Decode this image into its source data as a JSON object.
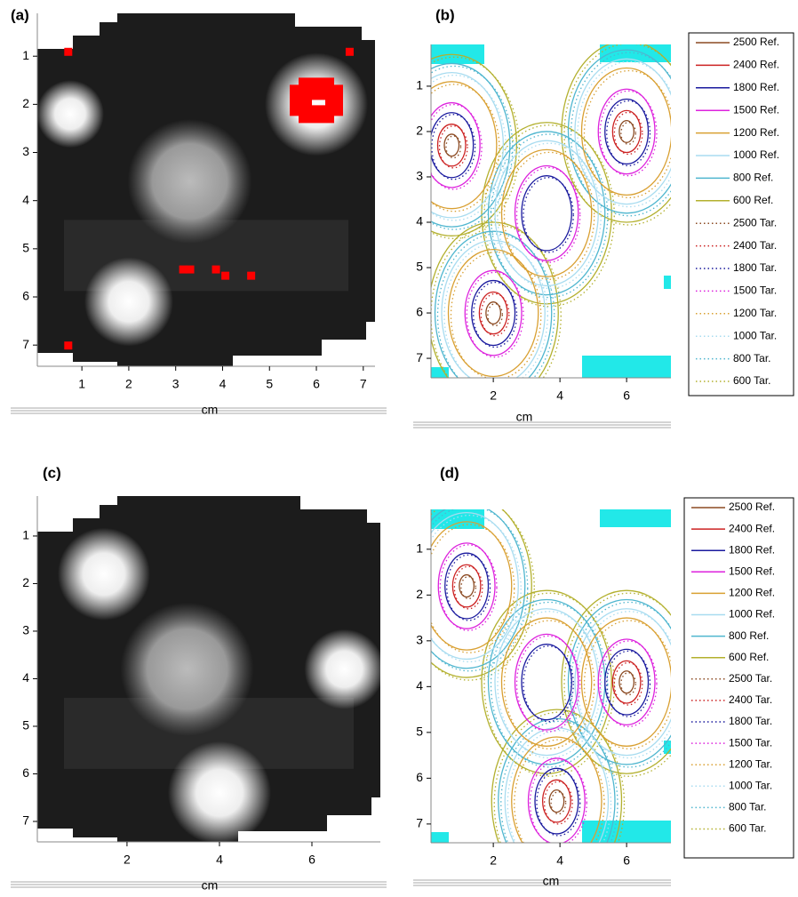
{
  "chart_data": [
    {
      "type": "heatmap",
      "title": "(a)",
      "xlabel": "cm",
      "y_inverted": true,
      "xlim": [
        0.05,
        7.25
      ],
      "ylim": [
        0.11,
        7.44
      ],
      "xticks": [
        1,
        2,
        3,
        4,
        5,
        6,
        7
      ],
      "yticks": [
        1,
        2,
        3,
        4,
        5,
        6,
        7
      ]
    },
    {
      "type": "contour",
      "title": "(b)",
      "xlabel": "cm",
      "y_inverted": true,
      "xlim": [
        0.13,
        7.33
      ],
      "ylim": [
        0.08,
        7.43
      ],
      "xticks": [
        2,
        4,
        6
      ],
      "yticks": [
        1,
        2,
        3,
        4,
        5,
        6,
        7
      ],
      "legend": [
        {
          "name": "2500 Ref.",
          "color": "#8b4a22",
          "style": "solid"
        },
        {
          "name": "2400 Ref.",
          "color": "#cc2222",
          "style": "solid"
        },
        {
          "name": "1800 Ref.",
          "color": "#1a1a9e",
          "style": "solid"
        },
        {
          "name": "1500 Ref.",
          "color": "#dd22dd",
          "style": "solid"
        },
        {
          "name": "1200 Ref.",
          "color": "#d9a032",
          "style": "solid"
        },
        {
          "name": "1000 Ref.",
          "color": "#a8dcf0",
          "style": "solid"
        },
        {
          "name": "800 Ref.",
          "color": "#4fb6cf",
          "style": "solid"
        },
        {
          "name": "600 Ref.",
          "color": "#b3b02e",
          "style": "solid"
        },
        {
          "name": "2500 Tar.",
          "color": "#8b4a22",
          "style": "dotted"
        },
        {
          "name": "2400 Tar.",
          "color": "#cc2222",
          "style": "dotted"
        },
        {
          "name": "1800 Tar.",
          "color": "#1a1a9e",
          "style": "dotted"
        },
        {
          "name": "1500 Tar.",
          "color": "#dd22dd",
          "style": "dotted"
        },
        {
          "name": "1200 Tar.",
          "color": "#d9a032",
          "style": "dotted"
        },
        {
          "name": "1000 Tar.",
          "color": "#a8dcf0",
          "style": "dotted"
        },
        {
          "name": "800 Tar.",
          "color": "#4fb6cf",
          "style": "dotted"
        },
        {
          "name": "600 Tar.",
          "color": "#b3b02e",
          "style": "dotted"
        }
      ]
    },
    {
      "type": "heatmap",
      "title": "(c)",
      "xlabel": "cm",
      "y_inverted": true,
      "xlim": [
        0.06,
        7.48
      ],
      "ylim": [
        0.16,
        7.43
      ],
      "xticks": [
        2,
        4,
        6
      ],
      "yticks": [
        1,
        2,
        3,
        4,
        5,
        6,
        7
      ]
    },
    {
      "type": "contour",
      "title": "(d)",
      "xlabel": "cm",
      "y_inverted": true,
      "xlim": [
        0.13,
        7.33
      ],
      "ylim": [
        0.13,
        7.41
      ],
      "xticks": [
        2,
        4,
        6
      ],
      "yticks": [
        1,
        2,
        3,
        4,
        5,
        6,
        7
      ],
      "legend": [
        {
          "name": "2500 Ref.",
          "color": "#8b4a22",
          "style": "solid"
        },
        {
          "name": "2400 Ref.",
          "color": "#cc2222",
          "style": "solid"
        },
        {
          "name": "1800 Ref.",
          "color": "#1a1a9e",
          "style": "solid"
        },
        {
          "name": "1500 Ref.",
          "color": "#dd22dd",
          "style": "solid"
        },
        {
          "name": "1200 Ref.",
          "color": "#d9a032",
          "style": "solid"
        },
        {
          "name": "1000 Ref.",
          "color": "#a8dcf0",
          "style": "solid"
        },
        {
          "name": "800 Ref.",
          "color": "#4fb6cf",
          "style": "solid"
        },
        {
          "name": "600 Ref.",
          "color": "#b3b02e",
          "style": "solid"
        },
        {
          "name": "2500 Tar.",
          "color": "#8b4a22",
          "style": "dotted"
        },
        {
          "name": "2400 Tar.",
          "color": "#cc2222",
          "style": "dotted"
        },
        {
          "name": "1800 Tar.",
          "color": "#1a1a9e",
          "style": "dotted"
        },
        {
          "name": "1500 Tar.",
          "color": "#dd22dd",
          "style": "dotted"
        },
        {
          "name": "1200 Tar.",
          "color": "#d9a032",
          "style": "dotted"
        },
        {
          "name": "1000 Tar.",
          "color": "#a8dcf0",
          "style": "dotted"
        },
        {
          "name": "800 Tar.",
          "color": "#4fb6cf",
          "style": "dotted"
        },
        {
          "name": "600 Tar.",
          "color": "#b3b02e",
          "style": "dotted"
        }
      ]
    }
  ]
}
